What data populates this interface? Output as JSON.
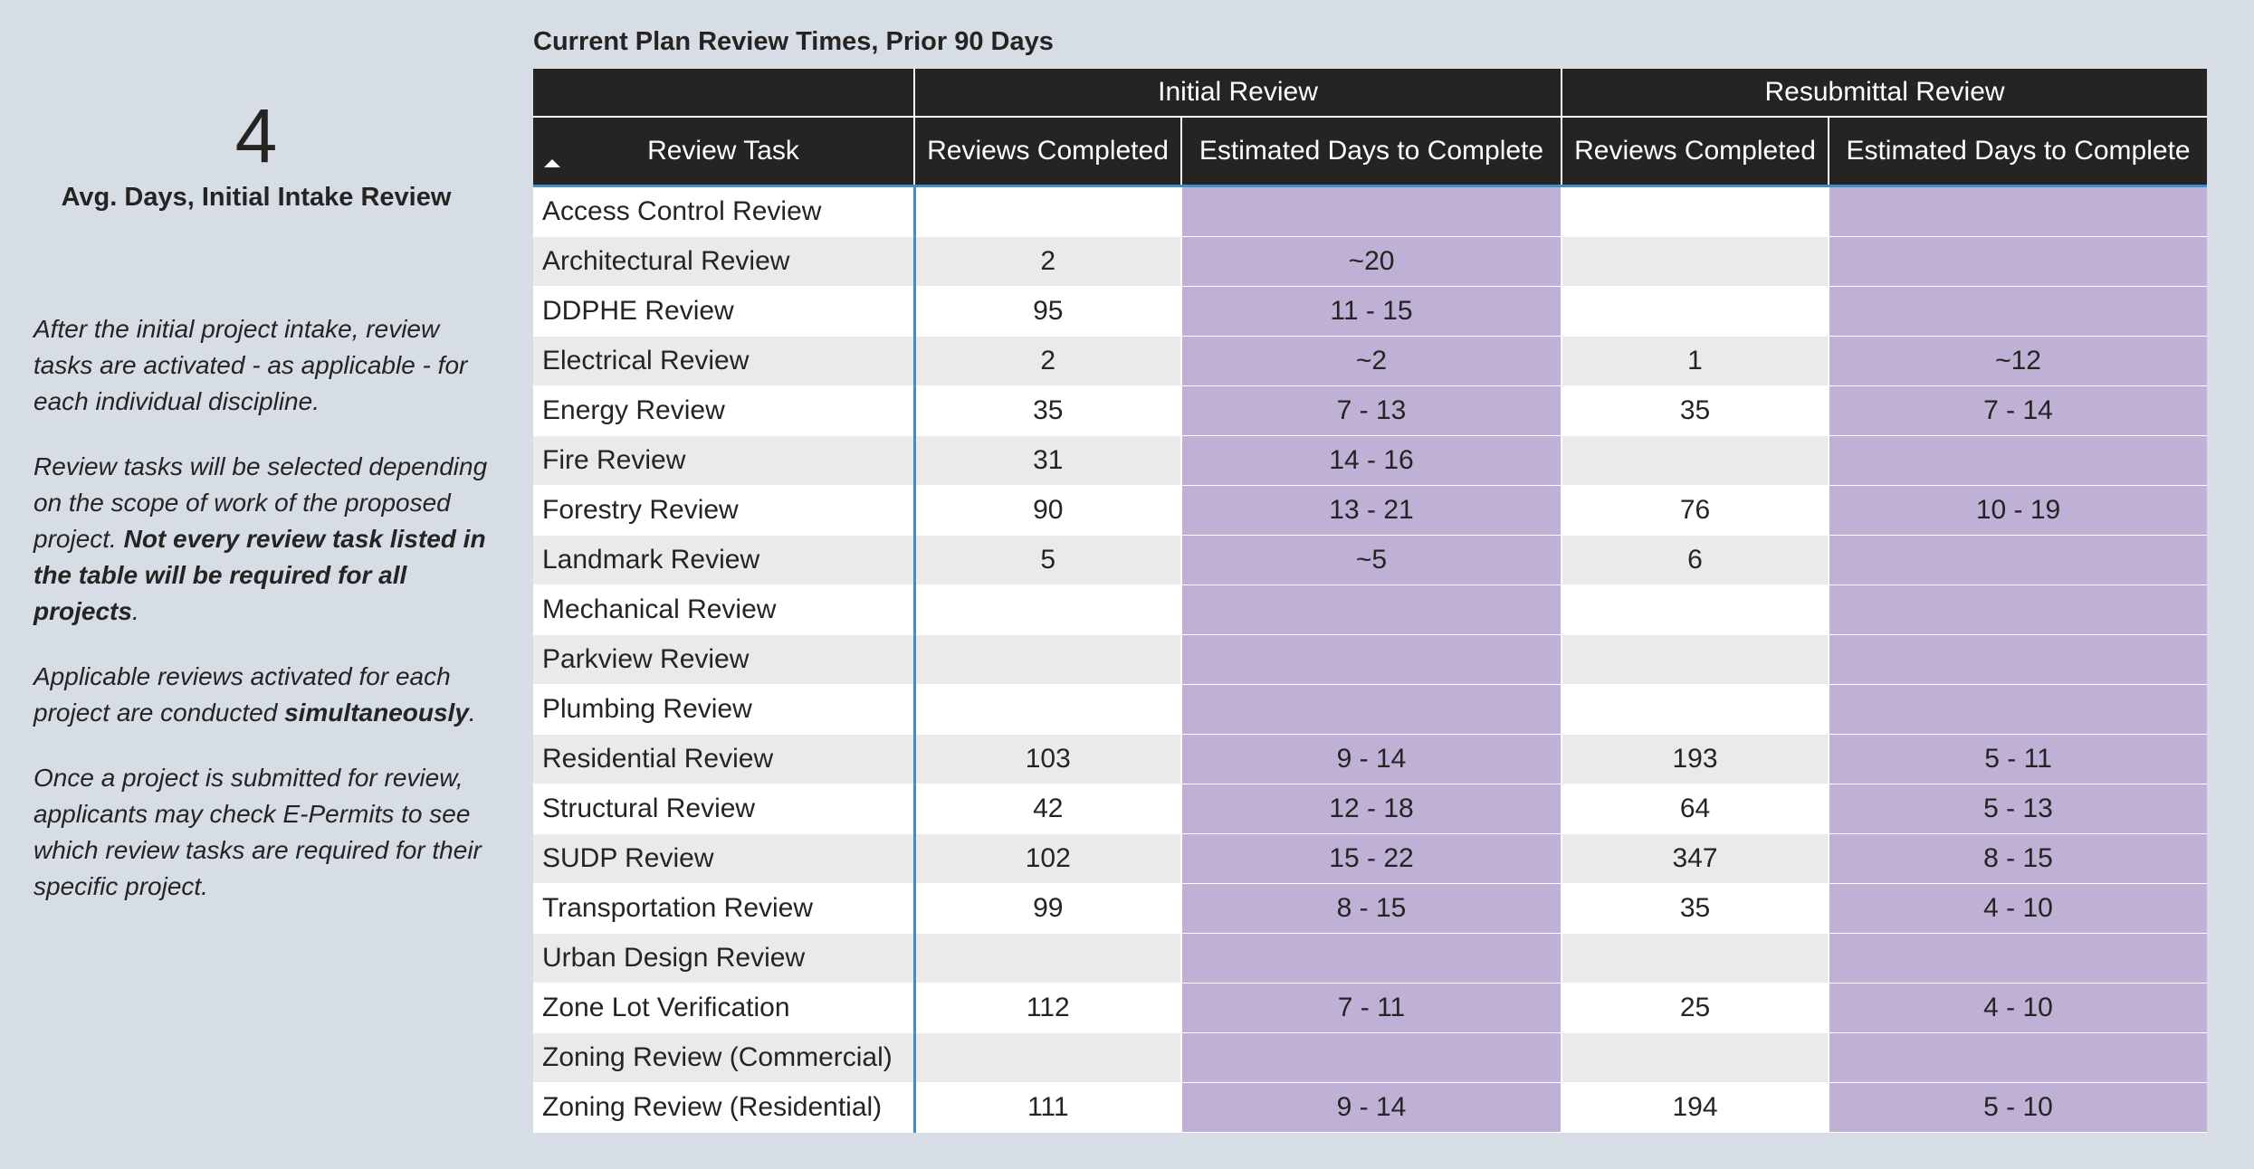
{
  "kpi": {
    "value": 4,
    "label": "Avg. Days, Initial Intake Review"
  },
  "notes": [
    [
      "After the initial project intake, review tasks are activated - as applicable - for each individual discipline."
    ],
    [
      "Review tasks will be selected depending on the scope of work of the proposed project. ",
      {
        "text": "Not every review task listed in the table will be required for all projects",
        "bold": true
      },
      "."
    ],
    [
      "Applicable reviews activated for each project are conducted ",
      {
        "text": "simultaneously",
        "bold": true
      },
      "."
    ],
    [
      "Once a project is submitted for review, applicants may check E-Permits to see which review tasks are required for their specific project."
    ]
  ],
  "table": {
    "title": "Current Plan Review Times, Prior 90 Days",
    "groups": [
      "Initial Review",
      "Resubmittal Review"
    ],
    "columns": [
      "Review Task",
      "Reviews Completed",
      "Estimated Days to Complete",
      "Reviews Completed",
      "Estimated Days to Complete"
    ],
    "rows": [
      [
        "Access Control Review",
        null,
        null,
        null,
        null
      ],
      [
        "Architectural Review",
        2,
        "~20",
        null,
        null
      ],
      [
        "DDPHE Review",
        95,
        "11 - 15",
        null,
        null
      ],
      [
        "Electrical Review",
        2,
        "~2",
        1,
        "~12"
      ],
      [
        "Energy Review",
        35,
        "7 - 13",
        35,
        "7 - 14"
      ],
      [
        "Fire Review",
        31,
        "14 - 16",
        null,
        null
      ],
      [
        "Forestry Review",
        90,
        "13 - 21",
        76,
        "10 - 19"
      ],
      [
        "Landmark Review",
        5,
        "~5",
        6,
        null
      ],
      [
        "Mechanical Review",
        null,
        null,
        null,
        null
      ],
      [
        "Parkview Review",
        null,
        null,
        null,
        null
      ],
      [
        "Plumbing Review",
        null,
        null,
        null,
        null
      ],
      [
        "Residential Review",
        103,
        "9 - 14",
        193,
        "5 - 11"
      ],
      [
        "Structural Review",
        42,
        "12 - 18",
        64,
        "5 - 13"
      ],
      [
        "SUDP Review",
        102,
        "15 - 22",
        347,
        "8 - 15"
      ],
      [
        "Transportation Review",
        99,
        "8 - 15",
        35,
        "4 - 10"
      ],
      [
        "Urban Design Review",
        null,
        null,
        null,
        null
      ],
      [
        "Zone Lot Verification",
        112,
        "7 - 11",
        25,
        "4 - 10"
      ],
      [
        "Zoning Review (Commercial)",
        null,
        null,
        null,
        null
      ],
      [
        "Zoning Review (Residential)",
        111,
        "9 - 14",
        194,
        "5 - 10"
      ]
    ]
  }
}
